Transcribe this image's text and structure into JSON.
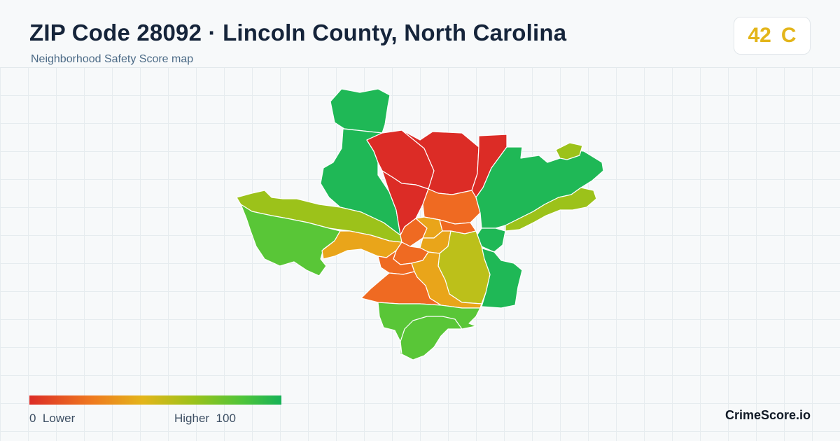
{
  "header": {
    "title": "ZIP Code 28092 · Lincoln County, North Carolina",
    "subtitle": "Neighborhood Safety Score map"
  },
  "score": {
    "value": "42",
    "grade": "C",
    "color": "#e3b51a"
  },
  "legend": {
    "min_value": "0",
    "min_label": "Lower",
    "max_label": "Higher",
    "max_value": "100",
    "colors": [
      "#dc2c26",
      "#ef7a1f",
      "#e3b51a",
      "#9cc21a",
      "#4cc43a",
      "#17b257"
    ]
  },
  "brand": "CrimeScore.io",
  "map": {
    "region_colors": {
      "red": "#dc2c26",
      "red_orange": "#e64a23",
      "orange": "#ef6a22",
      "amber": "#e9a51a",
      "olive": "#bcc01a",
      "yellow_green": "#9cc21a",
      "green": "#59c637",
      "dark_green": "#1fb856",
      "stroke": "#ffffff"
    }
  }
}
